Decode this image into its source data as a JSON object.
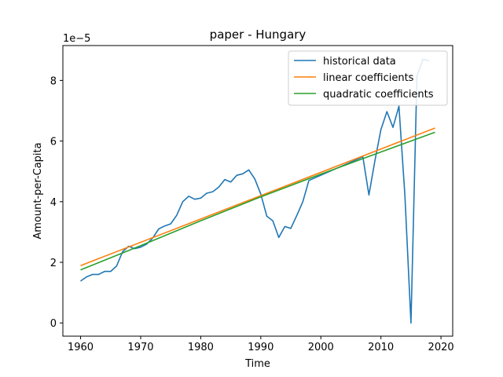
{
  "chart_data": {
    "type": "line",
    "title": "paper - Hungary",
    "xlabel": "Time",
    "ylabel": "Amount-per-Capita",
    "y_scale_label": "1e−5",
    "xlim": [
      1957.05,
      2021.95
    ],
    "ylim": [
      -0.4353,
      9.15
    ],
    "x_ticks": [
      1960,
      1970,
      1980,
      1990,
      2000,
      2010,
      2020
    ],
    "x_tick_labels": [
      "1960",
      "1970",
      "1980",
      "1990",
      "2000",
      "2010",
      "2020"
    ],
    "y_ticks": [
      0,
      2,
      4,
      6,
      8
    ],
    "y_tick_labels": [
      "0",
      "2",
      "4",
      "6",
      "8"
    ],
    "legend_position": "upper right",
    "grid": false,
    "series": [
      {
        "name": "historical data",
        "color": "#1f77b4",
        "x": [
          1960,
          1961,
          1962,
          1963,
          1964,
          1965,
          1966,
          1967,
          1968,
          1969,
          1970,
          1971,
          1972,
          1973,
          1974,
          1975,
          1976,
          1977,
          1978,
          1979,
          1980,
          1981,
          1982,
          1983,
          1984,
          1985,
          1986,
          1987,
          1988,
          1989,
          1990,
          1991,
          1992,
          1993,
          1994,
          1995,
          1996,
          1997,
          1998,
          2007,
          2008,
          2009,
          2010,
          2011,
          2012,
          2013,
          2014,
          2015,
          2016,
          2017,
          2018
        ],
        "values": [
          1.38,
          1.52,
          1.6,
          1.6,
          1.7,
          1.7,
          1.88,
          2.35,
          2.53,
          2.45,
          2.5,
          2.6,
          2.8,
          3.1,
          3.2,
          3.27,
          3.55,
          4.0,
          4.18,
          4.08,
          4.12,
          4.28,
          4.33,
          4.48,
          4.73,
          4.65,
          4.87,
          4.92,
          5.05,
          4.75,
          4.25,
          3.52,
          3.37,
          2.82,
          3.18,
          3.12,
          3.55,
          4.0,
          4.7,
          5.48,
          4.22,
          5.35,
          6.38,
          6.97,
          6.45,
          7.15,
          4.2,
          0.0,
          8.15,
          8.7,
          8.65
        ]
      },
      {
        "name": "linear coefficients",
        "color": "#ff7f0e",
        "x": [
          1960,
          2019
        ],
        "values": [
          1.89,
          6.43
        ]
      },
      {
        "name": "quadratic coefficients",
        "color": "#2ca02c",
        "x": [
          1960,
          1970,
          1980,
          1990,
          2000,
          2010,
          2019
        ],
        "values": [
          1.75,
          2.55,
          3.37,
          4.16,
          4.91,
          5.64,
          6.29
        ]
      }
    ]
  }
}
